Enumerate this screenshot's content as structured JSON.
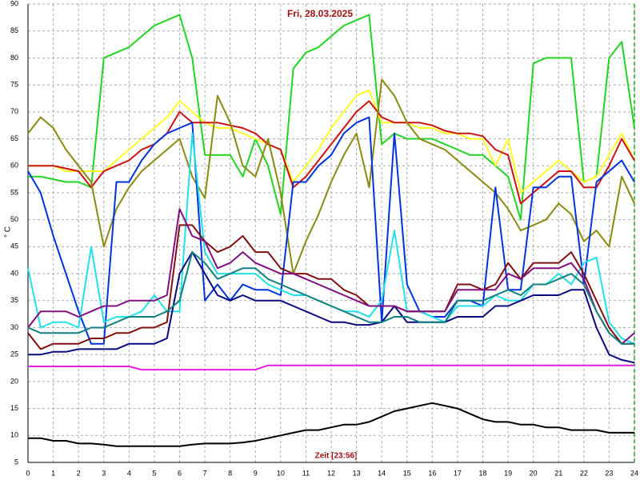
{
  "chart_data": {
    "type": "line",
    "title": "Fri, 28.03.2025",
    "xlabel": "Zeit [23:56]",
    "ylabel": "° C",
    "x": [
      0,
      0.5,
      1,
      1.5,
      2,
      2.5,
      3,
      3.5,
      4,
      4.5,
      5,
      5.5,
      6,
      6.5,
      7,
      7.5,
      8,
      8.5,
      9,
      9.5,
      10,
      10.5,
      11,
      11.5,
      12,
      12.5,
      13,
      13.5,
      14,
      14.5,
      15,
      15.5,
      16,
      16.5,
      17,
      17.5,
      18,
      18.5,
      19,
      19.5,
      20,
      20.5,
      21,
      21.5,
      22,
      22.5,
      23,
      23.5,
      24
    ],
    "xlim": [
      0,
      24
    ],
    "xticks": [
      0,
      1,
      2,
      3,
      4,
      5,
      6,
      7,
      8,
      9,
      10,
      11,
      12,
      13,
      14,
      15,
      16,
      17,
      18,
      19,
      20,
      21,
      22,
      23,
      24
    ],
    "ylim": [
      5,
      90
    ],
    "yticks": [
      5,
      10,
      15,
      20,
      25,
      30,
      35,
      40,
      45,
      50,
      55,
      60,
      65,
      70,
      75,
      80,
      85,
      90
    ],
    "grid": true,
    "series": [
      {
        "color": "#22d322",
        "values": [
          58,
          58,
          57.5,
          57,
          57,
          56,
          80,
          81,
          82,
          84,
          86,
          87,
          88,
          80,
          62,
          62,
          62,
          58,
          65,
          60,
          51,
          78,
          81,
          82,
          84,
          86,
          87,
          88,
          64,
          66,
          65,
          65,
          65,
          64,
          63,
          62,
          62,
          60,
          58,
          50,
          79,
          80,
          80,
          80,
          57,
          58,
          80,
          83,
          67
        ]
      },
      {
        "color": "#ffff22",
        "values": [
          60,
          60,
          60,
          59,
          59,
          59,
          59,
          61,
          63,
          65,
          67,
          69,
          72,
          70,
          68,
          67,
          67,
          66,
          65,
          64,
          63,
          57,
          60,
          63,
          67,
          70,
          73,
          74,
          68,
          68,
          68,
          67,
          67,
          66,
          66,
          65,
          65,
          60,
          65,
          55,
          57,
          59,
          61,
          59,
          57,
          58,
          62,
          66,
          61
        ]
      },
      {
        "color": "#cc1111",
        "values": [
          60,
          60,
          60,
          59.5,
          59,
          56,
          59,
          60,
          61,
          63,
          64,
          66,
          70,
          68,
          68,
          68,
          67.5,
          67,
          66,
          64,
          63,
          56,
          58,
          61,
          64,
          67,
          70,
          72,
          69,
          68,
          68,
          68,
          67.5,
          66.5,
          66,
          66,
          65.5,
          63,
          62,
          53,
          55,
          57,
          59,
          59,
          56,
          56,
          60,
          65,
          61
        ]
      },
      {
        "color": "#8a8a10",
        "values": [
          66,
          69,
          67,
          63,
          60,
          57,
          45,
          52,
          56,
          59,
          61,
          63,
          65,
          58,
          54,
          73,
          68,
          60,
          58,
          65,
          55,
          40,
          46,
          51,
          57,
          62,
          66,
          56,
          76,
          73,
          68,
          65,
          64,
          63,
          61,
          59,
          57,
          55,
          52,
          48,
          49,
          50,
          53,
          51,
          46,
          48,
          45,
          58,
          53
        ]
      },
      {
        "color": "#0033dd",
        "values": [
          59,
          55,
          47,
          40,
          33,
          27,
          27,
          57,
          57,
          61,
          64,
          66,
          67,
          68,
          35,
          38,
          35,
          38,
          37,
          37,
          36,
          57,
          57,
          60,
          62,
          66,
          68,
          69,
          31,
          66,
          38,
          33,
          32,
          32,
          35,
          35,
          34,
          56,
          37,
          37,
          56,
          56,
          58,
          58,
          38,
          57,
          59,
          61,
          57
        ]
      },
      {
        "color": "#22e0e8",
        "values": [
          41,
          30,
          31,
          31,
          30,
          45,
          31,
          32,
          32,
          33,
          36,
          33,
          33,
          66,
          44,
          40,
          40,
          40,
          40,
          38,
          37,
          36,
          36,
          35,
          34,
          33,
          33,
          32,
          35,
          48,
          33,
          33,
          32,
          31,
          34,
          34,
          34,
          36,
          35,
          35,
          38,
          38,
          40,
          38,
          42,
          43,
          31,
          28,
          27
        ]
      },
      {
        "color": "#0a0a80",
        "values": [
          25,
          25,
          25.5,
          25.5,
          26,
          26,
          26,
          26,
          27,
          27,
          27,
          28,
          40,
          44,
          40,
          36,
          35,
          36,
          35,
          35,
          35,
          34,
          33,
          32,
          31,
          31,
          30.5,
          30.5,
          31,
          34,
          31,
          31,
          31,
          31,
          32,
          32,
          32,
          34,
          34,
          35,
          36,
          36,
          36,
          37,
          37,
          30,
          25,
          24,
          23.5
        ]
      },
      {
        "color": "#801010",
        "values": [
          29,
          26,
          27,
          27,
          27,
          28,
          28,
          29,
          29,
          30,
          30,
          31,
          49,
          49,
          46,
          44,
          45,
          47,
          44,
          44,
          41,
          40,
          40,
          39,
          39,
          37,
          36,
          34,
          34,
          34,
          33,
          33,
          33,
          33,
          38,
          38,
          37,
          38,
          42,
          39,
          42,
          42,
          42,
          44,
          40,
          35,
          30,
          27,
          27
        ]
      },
      {
        "color": "#801080",
        "values": [
          30,
          33,
          33,
          33,
          32,
          33,
          34,
          34,
          35,
          35,
          35,
          36,
          52,
          47,
          46,
          41,
          42,
          44,
          42,
          41,
          40,
          40,
          39,
          38,
          37,
          36,
          35,
          34,
          34,
          34,
          33,
          33,
          33,
          33,
          37,
          37,
          37,
          37,
          40,
          39,
          41,
          41,
          41,
          42,
          39,
          33,
          29,
          27,
          29
        ]
      },
      {
        "color": "#108080",
        "values": [
          30,
          29,
          29,
          29,
          29,
          30,
          30,
          31,
          32,
          32,
          32,
          33,
          35,
          44,
          42,
          39,
          40,
          41,
          41,
          39,
          38,
          37,
          36,
          35,
          34,
          33,
          32,
          31,
          31,
          32,
          32,
          31,
          31,
          31,
          35,
          35,
          35,
          36,
          37,
          36,
          38,
          38,
          39,
          40,
          38,
          33,
          29,
          27,
          27
        ]
      },
      {
        "color": "#e020e0",
        "values": [
          22.8,
          22.8,
          22.8,
          22.8,
          22.8,
          22.8,
          22.8,
          22.8,
          22.8,
          22.2,
          22.2,
          22.2,
          22.2,
          22.2,
          22.2,
          22.2,
          22.2,
          22.2,
          22.2,
          23,
          23,
          23,
          23,
          23,
          23,
          23,
          23,
          23,
          23,
          23,
          23,
          23,
          23,
          23,
          23,
          23,
          23,
          23,
          23,
          23,
          23,
          23,
          23,
          23,
          23,
          23,
          23,
          23,
          23
        ]
      },
      {
        "color": "#000000",
        "values": [
          9.5,
          9.5,
          9,
          9,
          8.5,
          8.5,
          8.3,
          8,
          8,
          8,
          8,
          8,
          8,
          8.3,
          8.5,
          8.5,
          8.5,
          8.7,
          9,
          9.5,
          10,
          10.5,
          11,
          11,
          11.5,
          12,
          12,
          12.5,
          13.5,
          14.5,
          15,
          15.5,
          16,
          15.5,
          15,
          14,
          13,
          12.5,
          12.5,
          12,
          12,
          11.5,
          11.5,
          11,
          11,
          11,
          10.5,
          10.5,
          10.5
        ]
      }
    ]
  }
}
